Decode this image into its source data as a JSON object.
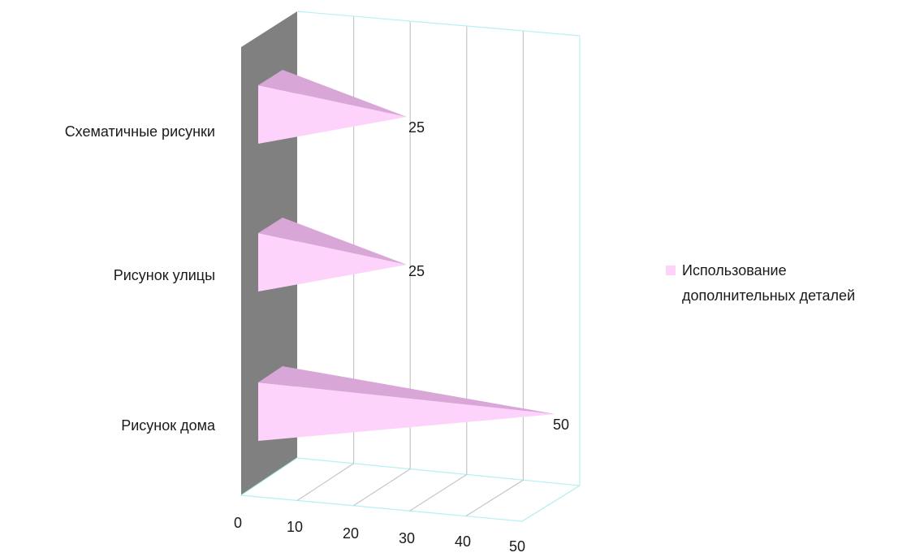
{
  "chart_data": {
    "type": "bar",
    "orientation": "horizontal",
    "style": "3d-cone",
    "categories": [
      "Схематичные рисунки",
      "Рисунок улицы",
      "Рисунок дома"
    ],
    "series": [
      {
        "name": "Использование дополнительных деталей",
        "values": [
          25,
          25,
          50
        ]
      }
    ],
    "xlim": [
      0,
      50
    ],
    "x_ticks": [
      "0",
      "10",
      "20",
      "30",
      "40",
      "50"
    ],
    "data_labels": [
      "25",
      "25",
      "50"
    ],
    "legend": {
      "position": "right",
      "lines": [
        "Использование",
        "дополнительных деталей"
      ]
    },
    "grid": true,
    "colors": {
      "bar_front": "#fdd3fc",
      "bar_top": "#d8a6d7",
      "side_wall": "#808080",
      "floor_border": "#b8f0f0",
      "grid_line": "#c6c6c6",
      "legend_swatch": "#fdd3fc"
    }
  }
}
